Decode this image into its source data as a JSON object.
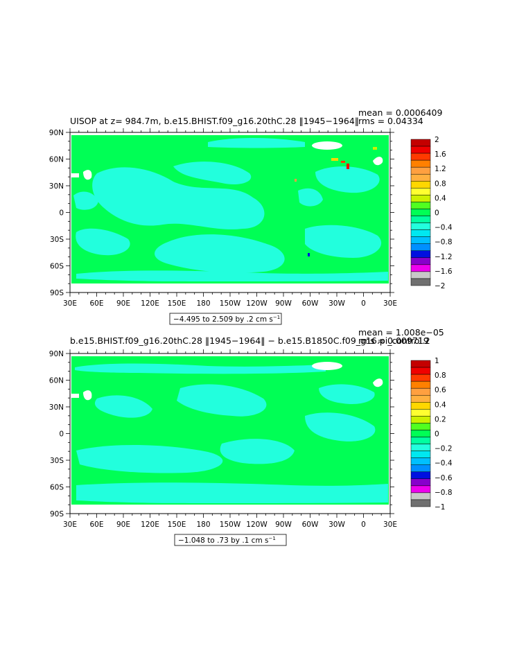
{
  "colors": {
    "ocean_green": "#00FF55",
    "ocean_cyan": "#22FFDD",
    "land": "#FFFFFF",
    "frame": "#000000"
  },
  "chart_data": [
    {
      "type": "heatmap",
      "title": "UISOP at z= 984.7m, b.e15.BHIST.f09_g16.20thC.28 ‖1945−1964‖",
      "stats": {
        "mean": "mean = 0.0006409",
        "rms": "rms = 0.04334"
      },
      "range_label": "−4.495 to 2.509 by .2 cm s",
      "range_unit_sup": "−1",
      "x_ticks": [
        "30E",
        "60E",
        "90E",
        "120E",
        "150E",
        "180",
        "150W",
        "120W",
        "90W",
        "60W",
        "30W",
        "0",
        "30E"
      ],
      "y_ticks": [
        "90N",
        "60N",
        "30N",
        "0",
        "30S",
        "60S",
        "90S"
      ],
      "legend": {
        "labels": [
          "2",
          "1.6",
          "1.2",
          "0.8",
          "0.4",
          "0",
          "−0.4",
          "−0.8",
          "−1.2",
          "−1.6",
          "−2"
        ],
        "colors": [
          "#C40000",
          "#F00000",
          "#FF3A00",
          "#FF8000",
          "#FFA040",
          "#FFB040",
          "#FFD700",
          "#FFFF30",
          "#CCF000",
          "#50FF20",
          "#00FF55",
          "#00FFA0",
          "#22FFDD",
          "#00E8F0",
          "#00C0FF",
          "#0090FF",
          "#0010E0",
          "#8800CC",
          "#EE00EE",
          "#C8C8C8",
          "#707070"
        ]
      }
    },
    {
      "type": "heatmap",
      "title": "b.e15.BHIST.f09_g16.20thC.28 ‖1945−1964‖ − b.e15.B1850C.f09_g16.pi_control.2",
      "stats": {
        "mean": "mean = 1.008e−05",
        "rms": "rms = 0.009719"
      },
      "range_label": "−1.048 to .73 by .1 cm s",
      "range_unit_sup": "−1",
      "x_ticks": [
        "30E",
        "60E",
        "90E",
        "120E",
        "150E",
        "180",
        "150W",
        "120W",
        "90W",
        "60W",
        "30W",
        "0",
        "30E"
      ],
      "y_ticks": [
        "90N",
        "60N",
        "30N",
        "0",
        "30S",
        "60S",
        "90S"
      ],
      "legend": {
        "labels": [
          "1",
          "0.8",
          "0.6",
          "0.4",
          "0.2",
          "0",
          "−0.2",
          "−0.4",
          "−0.6",
          "−0.8",
          "−1"
        ],
        "colors": [
          "#C40000",
          "#F00000",
          "#FF3A00",
          "#FF8000",
          "#FFA040",
          "#FFB040",
          "#FFD700",
          "#FFFF30",
          "#CCF000",
          "#50FF20",
          "#00FF55",
          "#00FFA0",
          "#22FFDD",
          "#00E8F0",
          "#00C0FF",
          "#0090FF",
          "#0010E0",
          "#8800CC",
          "#EE00EE",
          "#C8C8C8",
          "#707070"
        ]
      }
    }
  ]
}
